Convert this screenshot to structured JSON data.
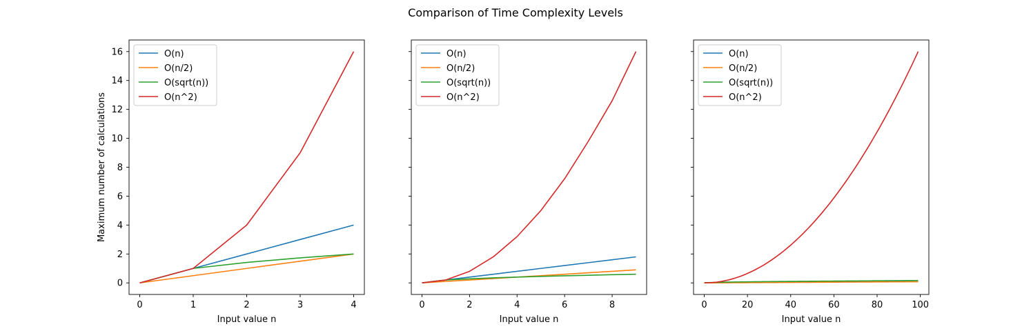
{
  "figure": {
    "title": "Comparison of Time Complexity Levels"
  },
  "chart_data": [
    {
      "type": "line",
      "title": "",
      "xlabel": "Input value n",
      "ylabel": "Maximum number of calculations",
      "xlim": [
        -0.2,
        4.2
      ],
      "ylim": [
        -0.8,
        16.8
      ],
      "xticks": [
        0,
        1,
        2,
        3,
        4
      ],
      "yticks": [
        0,
        2,
        4,
        6,
        8,
        10,
        12,
        14,
        16
      ],
      "show_yticklabels": true,
      "grid": false,
      "legend_position": "top-left",
      "x": [
        0,
        1,
        2,
        3,
        4
      ],
      "series": [
        {
          "name": "O(n)",
          "color": "#1f77b4",
          "values": [
            0,
            1,
            2,
            3,
            4
          ]
        },
        {
          "name": "O(n/2)",
          "color": "#ff7f0e",
          "values": [
            0,
            0.5,
            1,
            1.5,
            2
          ]
        },
        {
          "name": "O(sqrt(n))",
          "color": "#2ca02c",
          "values": [
            0,
            1,
            1.414,
            1.732,
            2
          ]
        },
        {
          "name": "O(n^2)",
          "color": "#d62728",
          "values": [
            0,
            1,
            4,
            9,
            16
          ]
        }
      ]
    },
    {
      "type": "line",
      "title": "",
      "xlabel": "Input value n",
      "ylabel": "",
      "xlim": [
        -0.45,
        9.45
      ],
      "ylim": [
        -0.8,
        16.8
      ],
      "xticks": [
        0,
        2,
        4,
        6,
        8
      ],
      "yticks": [
        0,
        2,
        4,
        6,
        8,
        10,
        12,
        14,
        16
      ],
      "show_yticklabels": false,
      "grid": false,
      "legend_position": "top-left",
      "x": [
        0,
        1,
        2,
        3,
        4,
        5,
        6,
        7,
        8,
        9
      ],
      "series": [
        {
          "name": "O(n)",
          "color": "#1f77b4",
          "values": [
            0,
            0.2,
            0.4,
            0.6,
            0.8,
            1.0,
            1.2,
            1.4,
            1.6,
            1.8
          ]
        },
        {
          "name": "O(n/2)",
          "color": "#ff7f0e",
          "values": [
            0,
            0.1,
            0.2,
            0.3,
            0.4,
            0.5,
            0.6,
            0.7,
            0.8,
            0.9
          ]
        },
        {
          "name": "O(sqrt(n))",
          "color": "#2ca02c",
          "values": [
            0,
            0.2,
            0.283,
            0.346,
            0.4,
            0.447,
            0.49,
            0.529,
            0.566,
            0.6
          ]
        },
        {
          "name": "O(n^2)",
          "color": "#d62728",
          "values": [
            0,
            0.2,
            0.8,
            1.8,
            3.2,
            5.0,
            7.2,
            9.8,
            12.6,
            16.0
          ]
        }
      ]
    },
    {
      "type": "line",
      "title": "",
      "xlabel": "Input value n",
      "ylabel": "",
      "xlim": [
        -4.95,
        103.95
      ],
      "ylim": [
        -0.8,
        16.8
      ],
      "xticks": [
        0,
        20,
        40,
        60,
        80,
        100
      ],
      "yticks": [
        0,
        2,
        4,
        6,
        8,
        10,
        12,
        14,
        16
      ],
      "show_yticklabels": false,
      "grid": false,
      "legend_position": "top-left",
      "x_range": [
        0,
        99
      ],
      "formulas": {
        "O(n)": "n * 16 / 9801",
        "O(n/2)": "n * 8 / 9801",
        "O(sqrt(n))": "sqrt(n) * 0.0162",
        "O(n^2)": "n^2 * 16 / 9801"
      },
      "series": [
        {
          "name": "O(n)",
          "color": "#1f77b4",
          "values_at_end": 0.162
        },
        {
          "name": "O(n/2)",
          "color": "#ff7f0e",
          "values_at_end": 0.081
        },
        {
          "name": "O(sqrt(n))",
          "color": "#2ca02c",
          "values_at_end": 0.161
        },
        {
          "name": "O(n^2)",
          "color": "#d62728",
          "values_at_end": 16.0
        }
      ]
    }
  ]
}
